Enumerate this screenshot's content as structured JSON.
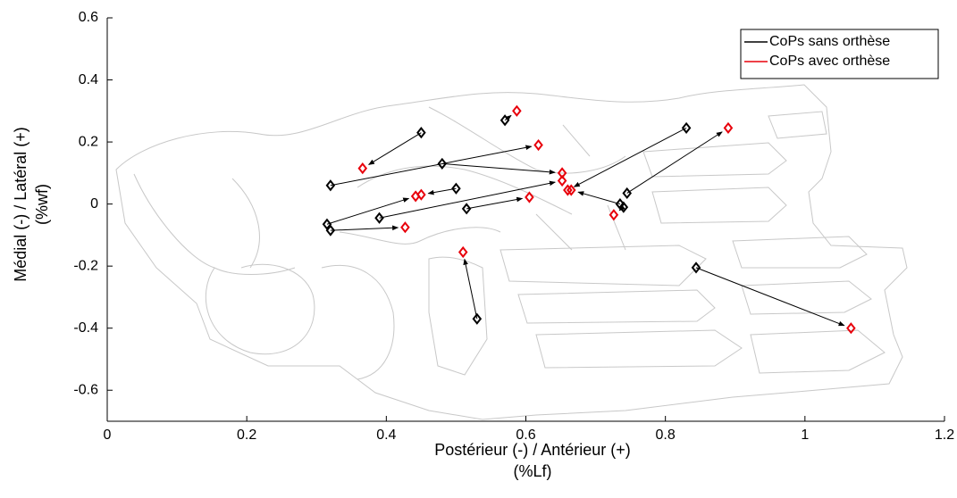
{
  "chart_data": {
    "type": "scatter",
    "xlabel": [
      "Postérieur (-) / Antérieur (+)",
      "(%Lf)"
    ],
    "ylabel": [
      "Médial (-) / Latéral (+)",
      "(%wf)"
    ],
    "xlim": [
      0,
      1.2
    ],
    "xticks": [
      0,
      0.2,
      0.4,
      0.6,
      0.8,
      1,
      1.2
    ],
    "ylim": [
      -0.7,
      0.6
    ],
    "yticks": [
      -0.6,
      -0.4,
      -0.2,
      0,
      0.2,
      0.4,
      0.6
    ],
    "legend": "upper right",
    "series": [
      {
        "name": "CoPs sans orthèse",
        "color": "#000000",
        "x": [
          0.45,
          0.32,
          0.48,
          0.57,
          0.83,
          0.5,
          0.39,
          0.315,
          0.32,
          0.515,
          0.745,
          0.735,
          0.74,
          0.53,
          0.844
        ],
        "y": [
          0.23,
          0.06,
          0.13,
          0.27,
          0.245,
          0.05,
          -0.045,
          -0.065,
          -0.085,
          -0.015,
          0.035,
          0,
          -0.01,
          -0.37,
          -0.205
        ]
      },
      {
        "name": "CoPs avec orthèse",
        "color": "#e8000b",
        "x": [
          0.366,
          0.618,
          0.652,
          0.587,
          0.66,
          0.45,
          0.652,
          0.442,
          0.427,
          0.605,
          0.89,
          0.665,
          0.726,
          0.51,
          1.066
        ],
        "y": [
          0.115,
          0.19,
          0.1,
          0.3,
          0.045,
          0.03,
          0.075,
          0.025,
          -0.075,
          0.022,
          0.245,
          0.045,
          -0.035,
          -0.155,
          -0.4
        ]
      }
    ]
  }
}
